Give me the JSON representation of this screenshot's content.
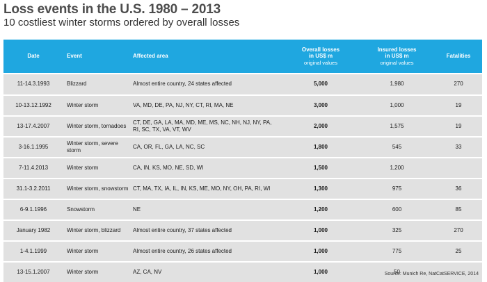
{
  "title": "Loss events in the U.S. 1980 – 2013",
  "subtitle": "10 costliest winter storms ordered by overall losses",
  "table": {
    "headers": {
      "date": "Date",
      "event": "Event",
      "area": "Affected area",
      "overall_main": "Overall losses",
      "overall_unit": "in US$ m",
      "overall_note": "original values",
      "insured_main": "Insured losses",
      "insured_unit": "in US$ m",
      "insured_note": "original values",
      "fatalities": "Fatalities"
    },
    "rows": [
      {
        "date": "11-14.3.1993",
        "event": "Blizzard",
        "area": "Almost entire country, 24 states affected",
        "overall": "5,000",
        "insured": "1,980",
        "fatalities": "270"
      },
      {
        "date": "10-13.12.1992",
        "event": "Winter storm",
        "area": "VA, MD, DE, PA, NJ, NY, CT, RI, MA, NE",
        "overall": "3,000",
        "insured": "1,000",
        "fatalities": "19"
      },
      {
        "date": "13-17.4.2007",
        "event": "Winter storm, tornadoes",
        "area": "CT, DE, GA, LA, MA, MD, ME, MS, NC, NH, NJ, NY, PA, RI, SC, TX, VA, VT, WV",
        "overall": "2,000",
        "insured": "1,575",
        "fatalities": "19"
      },
      {
        "date": "3-16.1.1995",
        "event": "Winter storm, severe storm",
        "area": "CA, OR, FL, GA, LA, NC, SC",
        "overall": "1,800",
        "insured": "545",
        "fatalities": "33"
      },
      {
        "date": "7-11.4.2013",
        "event": "Winter storm",
        "area": "CA, IN, KS, MO, NE, SD, WI",
        "overall": "1,500",
        "insured": "1,200",
        "fatalities": ""
      },
      {
        "date": "31.1-3.2.2011",
        "event": "Winter storm, snowstorm",
        "area": "CT, MA, TX, IA, IL, IN, KS, ME, MO, NY, OH, PA, RI, WI",
        "overall": "1,300",
        "insured": "975",
        "fatalities": "36"
      },
      {
        "date": "6-9.1.1996",
        "event": "Snowstorm",
        "area": "NE",
        "overall": "1,200",
        "insured": "600",
        "fatalities": "85"
      },
      {
        "date": "January 1982",
        "event": "Winter storm, blizzard",
        "area": "Almost entire country, 37 states affected",
        "overall": "1,000",
        "insured": "325",
        "fatalities": "270"
      },
      {
        "date": "1-4.1.1999",
        "event": "Winter storm",
        "area": "Almost entire country, 26 states affected",
        "overall": "1,000",
        "insured": "775",
        "fatalities": "25"
      },
      {
        "date": "13-15.1.2007",
        "event": "Winter storm",
        "area": "AZ, CA, NV",
        "overall": "1,000",
        "insured": "50",
        "fatalities": ""
      }
    ]
  },
  "source": "Source: Munich Re, NatCatSERVICE, 2014",
  "colors": {
    "header_bg": "#1fa7e0",
    "row_bg": "#e1e1e1"
  }
}
